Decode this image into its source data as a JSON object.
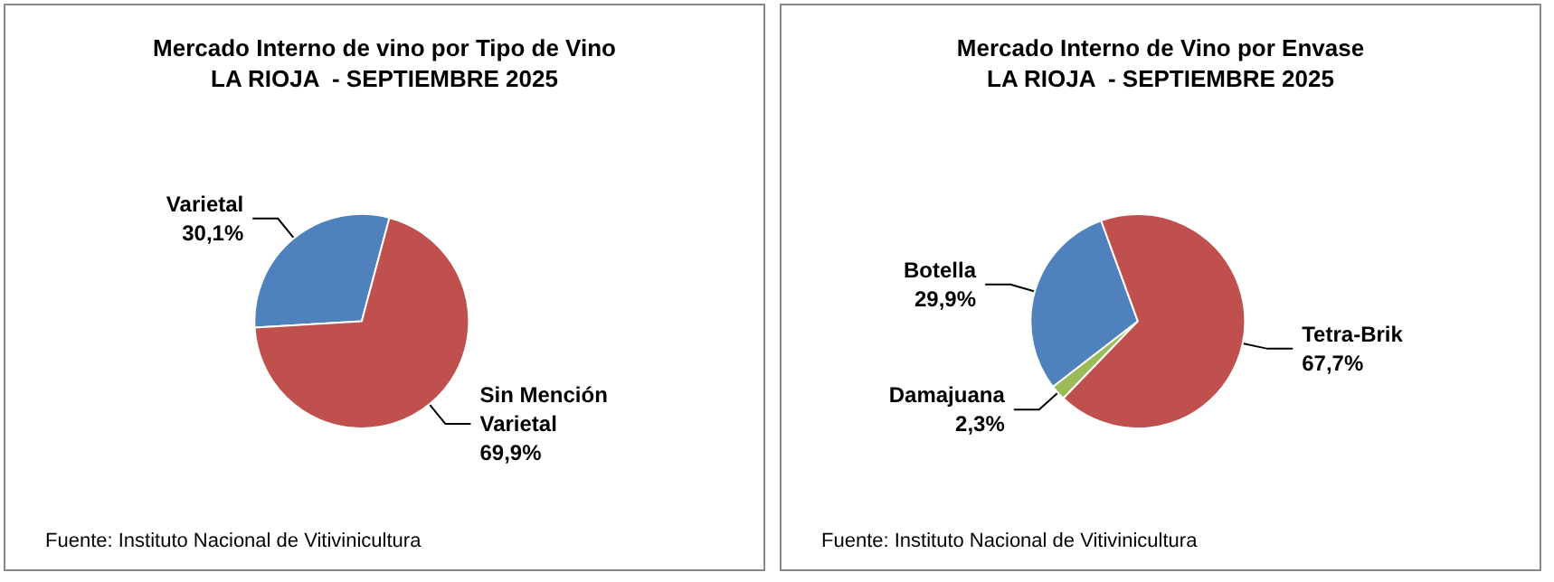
{
  "chart_data": [
    {
      "type": "pie",
      "title": "Mercado Interno de vino por Tipo de Vino\nLA RIOJA  - SEPTIEMBRE 2025",
      "categories": [
        "Varietal",
        "Sin Mención Varietal"
      ],
      "values": [
        30.1,
        69.9
      ],
      "colors": [
        "#4f81bd",
        "#c0504d"
      ],
      "value_labels": [
        "30,1%",
        "69,9%"
      ],
      "annotations": [
        "Fuente: Instituto Nacional de Vitivinicultura"
      ]
    },
    {
      "type": "pie",
      "title": "Mercado Interno de Vino por Envase\nLA RIOJA  - SEPTIEMBRE 2025",
      "categories": [
        "Botella",
        "Damajuana",
        "Tetra-Brik"
      ],
      "values": [
        29.9,
        2.3,
        67.7
      ],
      "colors": [
        "#4f81bd",
        "#9bbb59",
        "#c0504d"
      ],
      "value_labels": [
        "29,9%",
        "2,3%",
        "67,7%"
      ],
      "annotations": [
        "Fuente: Instituto Nacional de Vitivinicultura"
      ]
    }
  ]
}
